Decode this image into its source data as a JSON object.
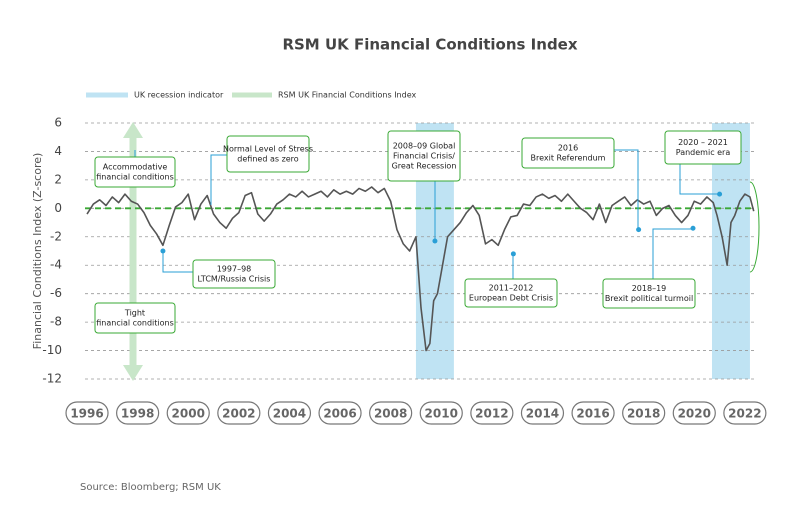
{
  "chart_data": {
    "type": "line",
    "title": "RSM UK Financial Conditions Index",
    "ylabel": "Financial Conditions Index (Z-score)",
    "source": "Source: Bloomberg; RSM UK",
    "xlim": [
      1995.92,
      2022.4
    ],
    "xticks": [
      1996,
      1998,
      2000,
      2002,
      2004,
      2006,
      2008,
      2010,
      2012,
      2014,
      2016,
      2018,
      2020,
      2022
    ],
    "ylim": [
      -12,
      6
    ],
    "yticks": [
      6,
      4,
      2,
      0,
      -2,
      -4,
      -6,
      -8,
      -10,
      -12
    ],
    "grid": true,
    "reference_line": {
      "value": 0,
      "color": "#3aa935"
    },
    "recessions": {
      "name": "UK recession indicator",
      "color": "#bfe3f3",
      "ranges": [
        [
          2009.0,
          2010.5
        ],
        [
          2020.7,
          2022.2
        ]
      ]
    },
    "series": [
      {
        "name": "RSM UK Financial Conditions Index",
        "color": "#555555",
        "legend_color": "#c8e6c9",
        "x": [
          1996.0,
          1996.25,
          1996.5,
          1996.75,
          1997.0,
          1997.25,
          1997.5,
          1997.75,
          1998.0,
          1998.25,
          1998.5,
          1998.75,
          1999.0,
          1999.25,
          1999.5,
          1999.75,
          2000.0,
          2000.25,
          2000.5,
          2000.75,
          2001.0,
          2001.25,
          2001.5,
          2001.75,
          2002.0,
          2002.25,
          2002.5,
          2002.75,
          2003.0,
          2003.25,
          2003.5,
          2003.75,
          2004.0,
          2004.25,
          2004.5,
          2004.75,
          2005.0,
          2005.25,
          2005.5,
          2005.75,
          2006.0,
          2006.25,
          2006.5,
          2006.75,
          2007.0,
          2007.25,
          2007.5,
          2007.75,
          2008.0,
          2008.25,
          2008.5,
          2008.75,
          2009.0,
          2009.2,
          2009.4,
          2009.55,
          2009.7,
          2009.85,
          2010.0,
          2010.25,
          2010.5,
          2010.75,
          2011.0,
          2011.25,
          2011.5,
          2011.75,
          2012.0,
          2012.25,
          2012.5,
          2012.75,
          2013.0,
          2013.25,
          2013.5,
          2013.75,
          2014.0,
          2014.25,
          2014.5,
          2014.75,
          2015.0,
          2015.25,
          2015.5,
          2015.75,
          2016.0,
          2016.25,
          2016.5,
          2016.75,
          2017.0,
          2017.25,
          2017.5,
          2017.75,
          2018.0,
          2018.25,
          2018.5,
          2018.75,
          2019.0,
          2019.25,
          2019.5,
          2019.75,
          2020.0,
          2020.25,
          2020.5,
          2020.75,
          2020.9,
          2021.1,
          2021.3,
          2021.45,
          2021.6,
          2021.8,
          2022.0,
          2022.2,
          2022.35
        ],
        "values": [
          -0.4,
          0.3,
          0.6,
          0.2,
          0.8,
          0.4,
          1.0,
          0.5,
          0.3,
          -0.3,
          -1.2,
          -1.8,
          -2.6,
          -1.2,
          0.1,
          0.4,
          1.0,
          -0.8,
          0.3,
          0.9,
          -0.4,
          -1.0,
          -1.4,
          -0.7,
          -0.3,
          0.9,
          1.1,
          -0.4,
          -0.9,
          -0.4,
          0.3,
          0.6,
          1.0,
          0.8,
          1.2,
          0.8,
          1.0,
          1.2,
          0.8,
          1.3,
          1.0,
          1.2,
          1.0,
          1.4,
          1.2,
          1.5,
          1.1,
          1.4,
          0.5,
          -1.5,
          -2.5,
          -3.0,
          -2.0,
          -7.0,
          -10.0,
          -9.5,
          -6.5,
          -6.0,
          -4.5,
          -2.0,
          -1.5,
          -1.0,
          -0.3,
          0.2,
          -0.5,
          -2.5,
          -2.2,
          -2.6,
          -1.5,
          -0.6,
          -0.5,
          0.3,
          0.2,
          0.8,
          1.0,
          0.7,
          0.9,
          0.5,
          1.0,
          0.5,
          0.0,
          -0.3,
          -0.8,
          0.3,
          -1.0,
          0.2,
          0.5,
          0.8,
          0.2,
          0.6,
          0.3,
          0.5,
          -0.5,
          0.0,
          0.2,
          -0.5,
          -1.0,
          -0.5,
          0.5,
          0.3,
          0.8,
          0.4,
          -0.5,
          -2.0,
          -4.0,
          -1.0,
          -0.5,
          0.5,
          1.0,
          0.8,
          -0.2
        ]
      }
    ],
    "annotations": [
      {
        "lines": [
          "Accommodative",
          "financial conditions"
        ]
      },
      {
        "lines": [
          "Normal Level of Stress",
          "defined as zero"
        ]
      },
      {
        "lines": [
          "1997–98",
          "LTCM/Russia Crisis"
        ],
        "point": [
          1999.0,
          -3.0
        ]
      },
      {
        "lines": [
          "Tight",
          "financial conditions"
        ]
      },
      {
        "lines": [
          "2008–09 Global",
          "Financial Crisis/",
          "Great Recession"
        ],
        "point": [
          2009.75,
          -2.3
        ]
      },
      {
        "lines": [
          "2011–2012",
          "European Debt Crisis"
        ],
        "point": [
          2012.85,
          -3.2
        ]
      },
      {
        "lines": [
          "2016",
          "Brexit Referendum"
        ],
        "point": [
          2017.8,
          -1.5
        ]
      },
      {
        "lines": [
          "2018–19",
          "Brexit political turmoil"
        ],
        "point": [
          2019.95,
          -1.4
        ]
      },
      {
        "lines": [
          "2020 – 2021",
          "Pandemic era"
        ],
        "point": [
          2021.0,
          1.0
        ]
      }
    ]
  }
}
